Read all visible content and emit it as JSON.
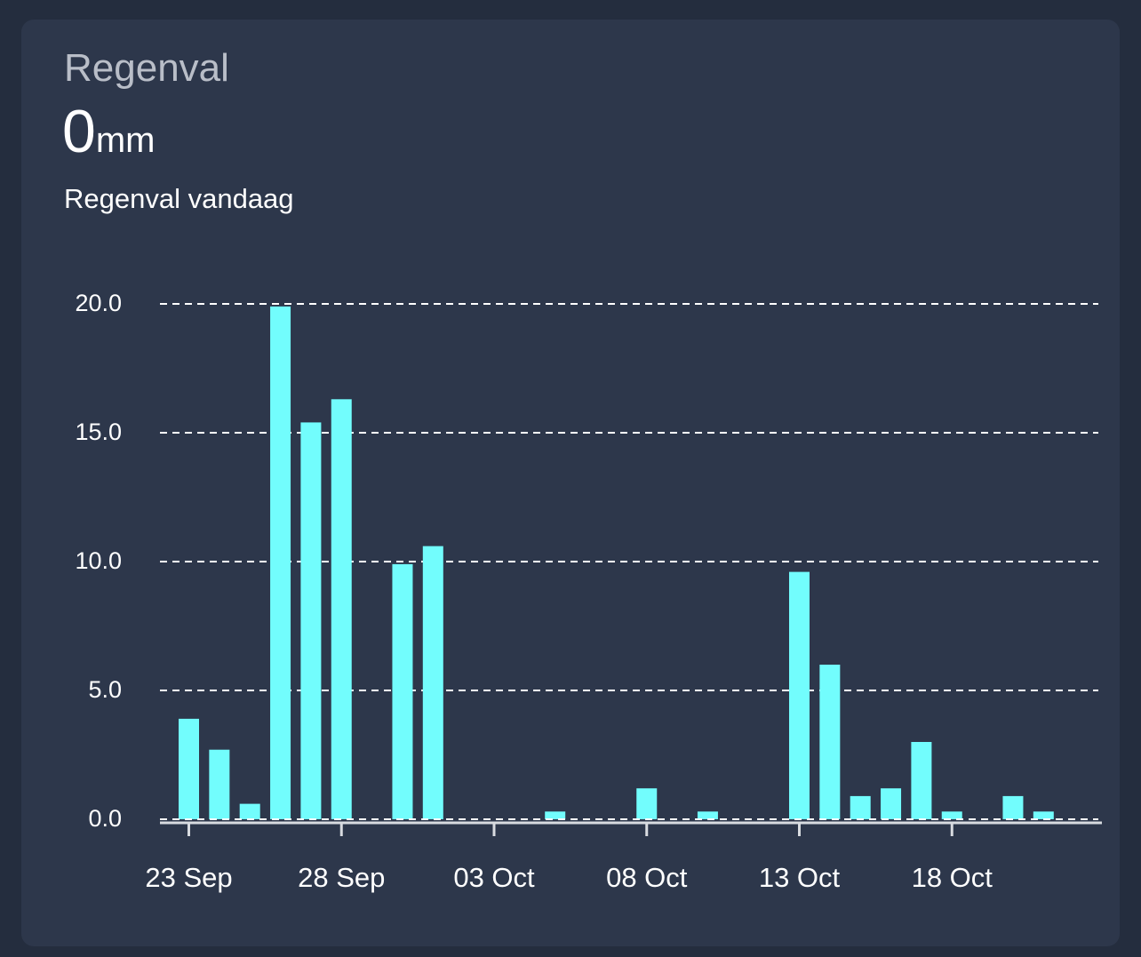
{
  "card": {
    "title": "Regenval",
    "value": "0",
    "unit": "mm",
    "subtitle": "Regenval vandaag"
  },
  "colors": {
    "background": "#242d3e",
    "card": "#2d374b",
    "bar": "#72fdfd",
    "grid": "#ffffff",
    "text": "#ffffff",
    "title": "#b9bec8"
  },
  "chart_data": {
    "type": "bar",
    "title": "",
    "xlabel": "",
    "ylabel": "",
    "ylim": [
      0,
      20
    ],
    "yticks": [
      "0.0",
      "5.0",
      "10.0",
      "15.0",
      "20.0"
    ],
    "xtick_labels": [
      "23 Sep",
      "28 Sep",
      "03 Oct",
      "08 Oct",
      "13 Oct",
      "18 Oct"
    ],
    "grid": "horizontal dashed",
    "categories": [
      "23 Sep",
      "24 Sep",
      "25 Sep",
      "26 Sep",
      "27 Sep",
      "28 Sep",
      "29 Sep",
      "30 Sep",
      "01 Oct",
      "02 Oct",
      "03 Oct",
      "04 Oct",
      "05 Oct",
      "06 Oct",
      "07 Oct",
      "08 Oct",
      "09 Oct",
      "10 Oct",
      "11 Oct",
      "12 Oct",
      "13 Oct",
      "14 Oct",
      "15 Oct",
      "16 Oct",
      "17 Oct",
      "18 Oct",
      "19 Oct",
      "20 Oct",
      "21 Oct"
    ],
    "values": [
      3.9,
      2.7,
      0.6,
      19.9,
      15.4,
      16.3,
      0,
      9.9,
      10.6,
      0,
      0,
      0,
      0.3,
      0,
      0,
      1.2,
      0,
      0.3,
      0,
      0,
      9.6,
      6.0,
      0.9,
      1.2,
      3.0,
      0.3,
      0,
      0.9,
      0.3
    ]
  }
}
